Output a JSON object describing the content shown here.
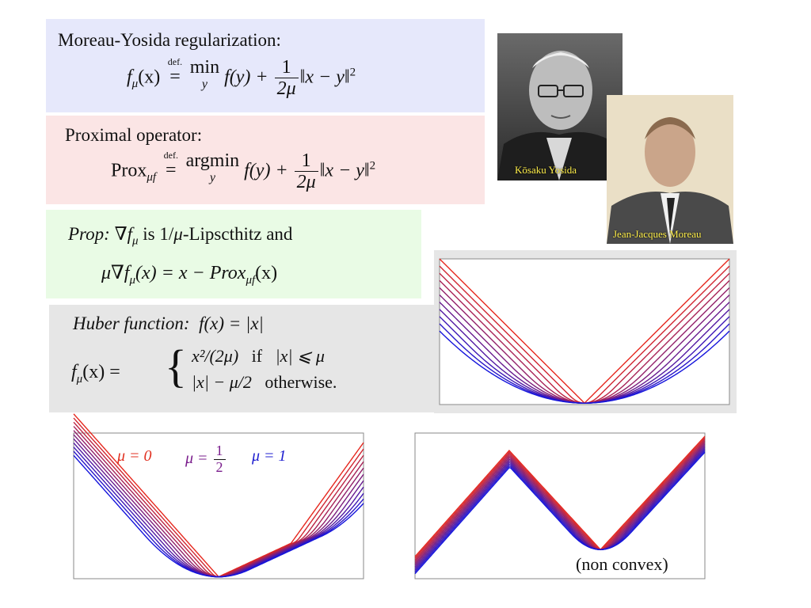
{
  "moreau": {
    "title": "Moreau-Yosida regularization:",
    "lhs": "f",
    "lhs_sub": "μ",
    "lhs_arg": "(x)",
    "def_label": "def.",
    "min_word": "min",
    "min_var": "y",
    "fy": "f(y) +",
    "frac_num": "1",
    "frac_den": "2μ",
    "norm": "‖x − y‖",
    "sq": "2"
  },
  "prox": {
    "title": "Proximal operator:",
    "lhs": "Prox",
    "lhs_sub": "μf",
    "def_label": "def.",
    "argmin_word": "argmin",
    "argmin_var": "y",
    "fy": "f(y) +",
    "frac_num": "1",
    "frac_den": "2μ",
    "norm": "‖x − y‖",
    "sq": "2"
  },
  "prop": {
    "label": "Prop:",
    "line1_a": "∇f",
    "line1_sub": "μ",
    "line1_b": " is 1/",
    "line1_mu": "μ",
    "line1_c": "-Lipscthitz and",
    "line2_a": "μ∇f",
    "line2_sub": "μ",
    "line2_b": "(x) = x − Prox",
    "line2_sub2": "μf",
    "line2_c": "(x)"
  },
  "huber": {
    "title": "Huber function:",
    "def": "f(x) = |x|",
    "lhs": "f",
    "lhs_sub": "μ",
    "lhs_arg": "(x) =",
    "case1_expr": "x²/(2μ)",
    "case1_cond_word": "if",
    "case1_cond": "|x| ⩽ μ",
    "case2_expr": "|x| − μ/2",
    "case2_cond_word": "otherwise."
  },
  "photos": {
    "yosida_caption": "Kōsaku Yosida",
    "moreau_caption": "Jean-Jacques Moreau"
  },
  "legend": {
    "mu0": "μ = 0",
    "mu_half_prefix": "μ =",
    "mu_half_num": "1",
    "mu_half_den": "2",
    "mu1": "μ = 1",
    "color_mu0": "#e03020",
    "color_mu_half": "#7a1d8c",
    "color_mu1": "#2020d0"
  },
  "nonconvex_label": "(non convex)",
  "chart_data": [
    {
      "type": "line",
      "description_key": "huber",
      "function": "Huber smoothing of |x|",
      "mu_values": [
        0,
        0.1,
        0.2,
        0.3,
        0.4,
        0.5,
        0.6,
        0.7,
        0.8,
        0.9,
        1.0
      ],
      "x_range": [
        -1,
        1
      ],
      "grid": false
    },
    {
      "type": "line",
      "description_key": "asymmetric",
      "mu_values": [
        0,
        0.1,
        0.2,
        0.3,
        0.4,
        0.5,
        0.6,
        0.7,
        0.8,
        0.9,
        1.0
      ],
      "x_range": [
        -1,
        1
      ],
      "grid": false
    },
    {
      "type": "line",
      "description_key": "nonconvex",
      "mu_values": [
        0,
        0.1,
        0.2,
        0.3,
        0.4,
        0.5,
        0.6,
        0.7,
        0.8,
        0.9,
        1.0
      ],
      "x_range": [
        -1,
        1
      ],
      "grid": false
    }
  ]
}
